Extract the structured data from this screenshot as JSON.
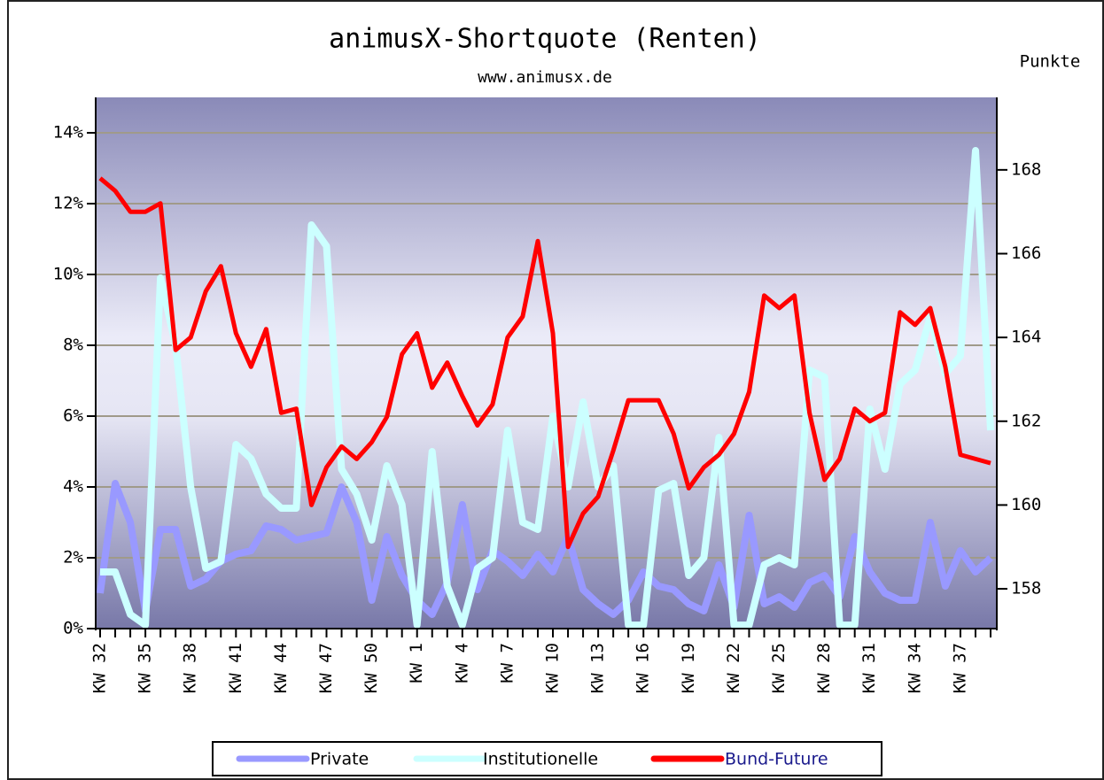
{
  "chart_data": {
    "type": "line",
    "title": "animusX-Shortquote (Renten)",
    "subtitle": "www.animusx.de",
    "y2_label": "Punkte",
    "categories": [
      "KW 32",
      null,
      null,
      "KW 35",
      null,
      null,
      "KW 38",
      null,
      null,
      "KW 41",
      null,
      null,
      "KW 44",
      null,
      null,
      "KW 47",
      null,
      null,
      "KW 50",
      null,
      null,
      "KW 1",
      null,
      null,
      "KW 4",
      null,
      null,
      "KW 7",
      null,
      null,
      "KW 10",
      null,
      null,
      "KW 13",
      null,
      null,
      "KW 16",
      null,
      null,
      "KW 19",
      null,
      null,
      "KW 22",
      null,
      null,
      "KW 25",
      null,
      null,
      "KW 28",
      null,
      null,
      "KW 31",
      null,
      null,
      "KW 34",
      null,
      null,
      "KW 37",
      null,
      null
    ],
    "series": [
      {
        "name": "Private",
        "color": "#9999ff",
        "values": [
          1.0,
          4.1,
          3.0,
          0.5,
          2.8,
          2.8,
          1.2,
          1.4,
          1.9,
          2.1,
          2.2,
          2.9,
          2.8,
          2.5,
          2.6,
          2.7,
          4.0,
          3.0,
          0.8,
          2.6,
          1.5,
          0.8,
          0.4,
          1.3,
          3.5,
          1.1,
          2.2,
          1.9,
          1.5,
          2.1,
          1.6,
          2.6,
          1.1,
          0.7,
          0.4,
          0.8,
          1.6,
          1.2,
          1.1,
          0.7,
          0.5,
          1.8,
          0.6,
          3.2,
          0.7,
          0.9,
          0.6,
          1.3,
          1.5,
          0.9,
          2.6,
          1.6,
          1.0,
          0.8,
          0.8,
          3.0,
          1.2,
          2.2,
          1.6,
          2.0
        ]
      },
      {
        "name": "Institutionelle",
        "color": "#ccffff",
        "values": [
          1.6,
          1.6,
          0.4,
          0.1,
          9.9,
          8.0,
          4.0,
          1.7,
          1.9,
          5.2,
          4.8,
          3.8,
          3.4,
          3.4,
          11.4,
          10.8,
          4.5,
          3.8,
          2.5,
          4.6,
          3.5,
          0.1,
          5.0,
          1.2,
          0.1,
          1.7,
          2.0,
          5.6,
          3.0,
          2.8,
          6.0,
          4.0,
          6.4,
          4.0,
          4.6,
          0.1,
          0.1,
          3.9,
          4.1,
          1.5,
          2.0,
          5.4,
          0.1,
          0.1,
          1.8,
          2.0,
          1.8,
          7.3,
          7.1,
          0.1,
          0.1,
          6.2,
          4.5,
          6.9,
          7.3,
          8.8,
          7.2,
          7.7,
          13.5,
          5.6
        ]
      },
      {
        "name": "Bund-Future",
        "color": "#ff0000",
        "axis": "y2",
        "values": [
          167.8,
          167.5,
          167.0,
          167.0,
          167.2,
          163.7,
          164.0,
          165.1,
          165.7,
          164.1,
          163.3,
          164.2,
          162.2,
          162.3,
          160.0,
          160.9,
          161.4,
          161.1,
          161.5,
          162.1,
          163.6,
          164.1,
          162.8,
          163.4,
          162.6,
          161.9,
          162.4,
          164.0,
          164.5,
          166.3,
          164.1,
          159.0,
          159.8,
          160.2,
          161.3,
          162.5,
          162.5,
          162.5,
          161.7,
          160.4,
          160.9,
          161.2,
          161.7,
          162.7,
          165.0,
          164.7,
          165.0,
          162.2,
          160.6,
          161.1,
          162.3,
          162.0,
          162.2,
          164.6,
          164.3,
          164.7,
          163.3,
          161.2,
          161.1,
          161.0
        ]
      }
    ],
    "ylim": [
      0,
      15
    ],
    "yticks": [
      {
        "value": 0,
        "label": "0%"
      },
      {
        "value": 2,
        "label": "2%"
      },
      {
        "value": 4,
        "label": "4%"
      },
      {
        "value": 6,
        "label": "6%"
      },
      {
        "value": 8,
        "label": "8%"
      },
      {
        "value": 10,
        "label": "10%"
      },
      {
        "value": 12,
        "label": "12%"
      },
      {
        "value": 14,
        "label": "14%"
      }
    ],
    "y2lim": [
      157.05,
      169.73
    ],
    "y2ticks": [
      158,
      160,
      162,
      164,
      166,
      168
    ],
    "grid": true,
    "legend": "bottom"
  }
}
